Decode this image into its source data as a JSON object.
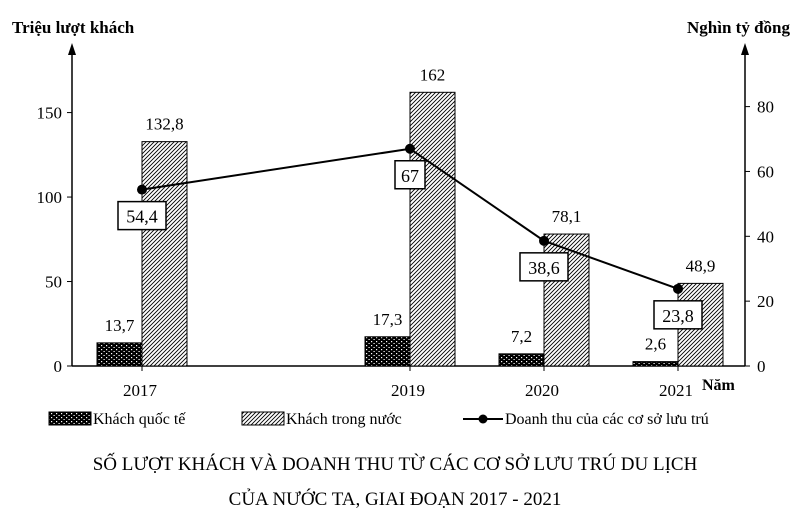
{
  "chart_data": {
    "type": "bar+line",
    "title_line1": "SỐ LƯỢT KHÁCH VÀ DOANH THU TỪ CÁC CƠ SỞ LƯU TRÚ DU LỊCH",
    "title_line2": "CỦA NƯỚC TA, GIAI ĐOẠN 2017 - 2021",
    "ylabel_left": "Triệu lượt khách",
    "ylabel_right": "Nghìn tỷ đồng",
    "xlabel": "Năm",
    "categories": [
      "2017",
      "2019",
      "2020",
      "2021"
    ],
    "y_left_ticks": [
      0,
      50,
      100,
      150
    ],
    "y_right_ticks": [
      0,
      20,
      40,
      60,
      80
    ],
    "ylim_left": [
      0,
      190
    ],
    "ylim_right": [
      0,
      99
    ],
    "series": [
      {
        "name": "Khách quốc tế",
        "type": "bar",
        "axis": "left",
        "pattern": "dotted-black",
        "values": [
          13.7,
          17.3,
          7.2,
          2.6
        ],
        "labels": [
          "13,7",
          "17,3",
          "7,2",
          "2,6"
        ]
      },
      {
        "name": "Khách trong nước",
        "type": "bar",
        "axis": "left",
        "pattern": "diagonal-hatch",
        "values": [
          132.8,
          162,
          78.1,
          48.9
        ],
        "labels": [
          "132,8",
          "162",
          "78,1",
          "48,9"
        ]
      },
      {
        "name": "Doanh thu của các cơ sở lưu trú",
        "type": "line",
        "axis": "right",
        "marker": "circle",
        "values": [
          54.4,
          67,
          38.6,
          23.8
        ],
        "labels": [
          "54,4",
          "67",
          "38,6",
          "23,8"
        ]
      }
    ],
    "legend_placement": "bottom",
    "grid": false,
    "colors": {
      "ink": "#000000",
      "background": "#ffffff"
    }
  }
}
